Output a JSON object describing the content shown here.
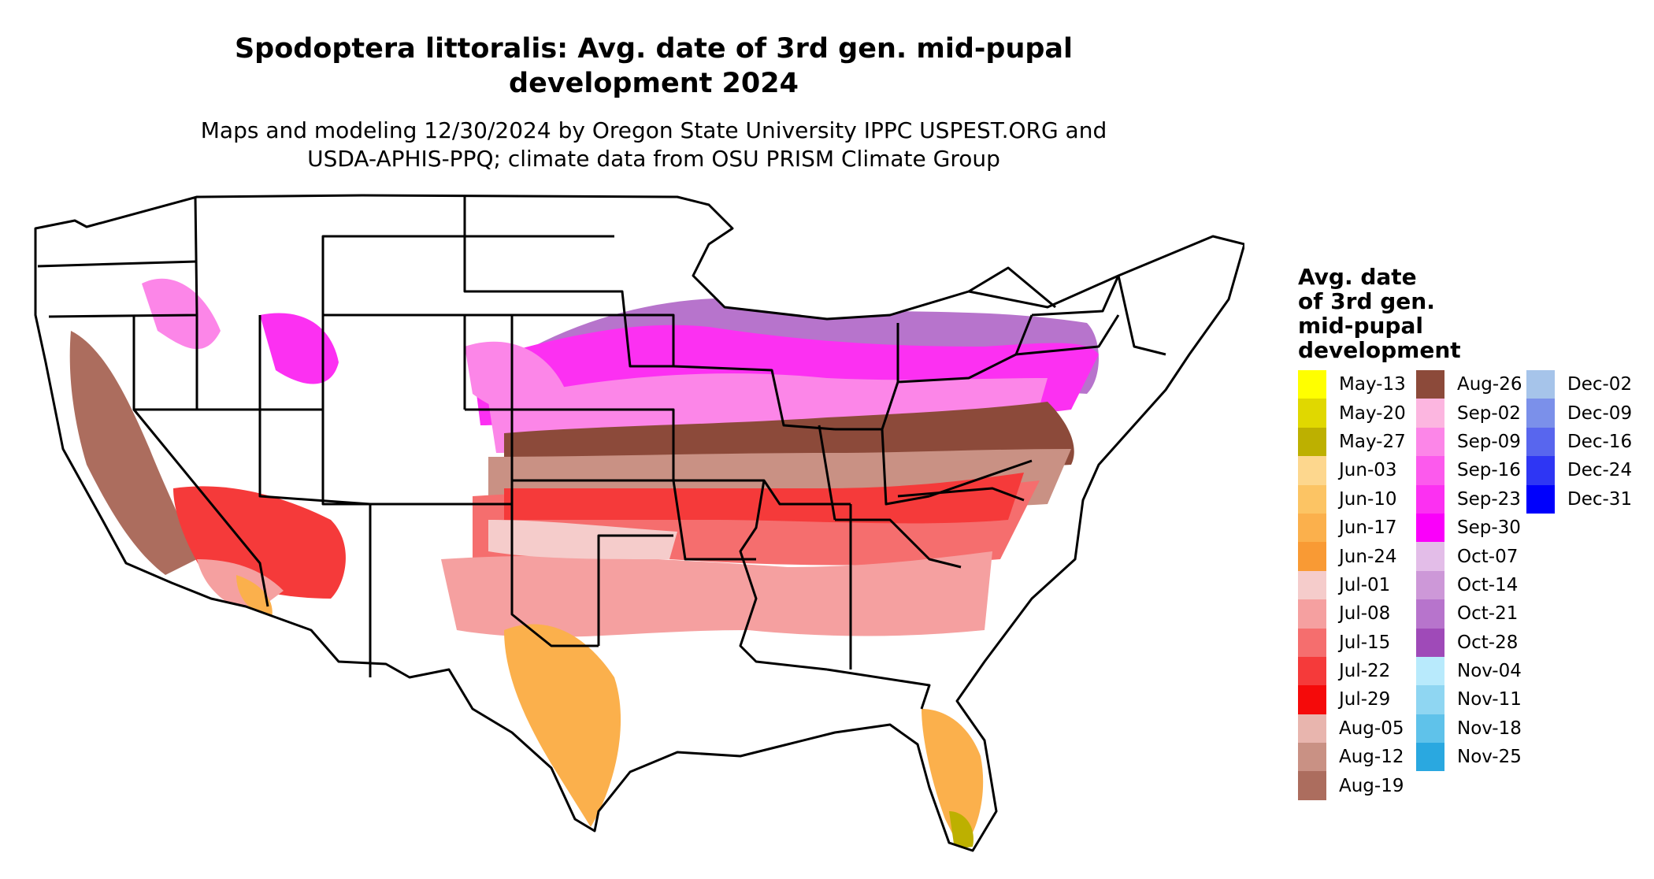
{
  "title": "Spodoptera littoralis: Avg. date of 3rd gen. mid-pupal development 2024",
  "title_line1": "Spodoptera littoralis: Avg. date of 3rd gen. mid-pupal",
  "title_line2": "development 2024",
  "subtitle_line1": "Maps and modeling 12/30/2024 by Oregon State University IPPC USPEST.ORG and",
  "subtitle_line2": "USDA-APHIS-PPQ; climate data from OSU PRISM Climate Group",
  "legend": {
    "title_lines": [
      "Avg. date",
      "of 3rd gen.",
      "mid-pupal",
      "development"
    ],
    "items": [
      {
        "label": "May-13",
        "color": "#ffff00"
      },
      {
        "label": "May-20",
        "color": "#e0d800"
      },
      {
        "label": "May-27",
        "color": "#bdb000"
      },
      {
        "label": "Jun-03",
        "color": "#fdd78e"
      },
      {
        "label": "Jun-10",
        "color": "#fcc464"
      },
      {
        "label": "Jun-17",
        "color": "#fbb04c"
      },
      {
        "label": "Jun-24",
        "color": "#f99a34"
      },
      {
        "label": "Jul-01",
        "color": "#f5cccb"
      },
      {
        "label": "Jul-08",
        "color": "#f5a0a0"
      },
      {
        "label": "Jul-15",
        "color": "#f56e6e"
      },
      {
        "label": "Jul-22",
        "color": "#f53a3a"
      },
      {
        "label": "Jul-29",
        "color": "#f50a0a"
      },
      {
        "label": "Aug-05",
        "color": "#e8b5ae"
      },
      {
        "label": "Aug-12",
        "color": "#c99184"
      },
      {
        "label": "Aug-19",
        "color": "#ac6d5e"
      },
      {
        "label": "Aug-26",
        "color": "#8c4a3a"
      },
      {
        "label": "Sep-02",
        "color": "#fcb6e0"
      },
      {
        "label": "Sep-09",
        "color": "#fc86e8"
      },
      {
        "label": "Sep-16",
        "color": "#fc5aed"
      },
      {
        "label": "Sep-23",
        "color": "#fc30f2"
      },
      {
        "label": "Sep-30",
        "color": "#fa00fa"
      },
      {
        "label": "Oct-07",
        "color": "#e3bde8"
      },
      {
        "label": "Oct-14",
        "color": "#cd98d8"
      },
      {
        "label": "Oct-21",
        "color": "#b774cc"
      },
      {
        "label": "Oct-28",
        "color": "#9f4ab8"
      },
      {
        "label": "Nov-04",
        "color": "#b8eafc"
      },
      {
        "label": "Nov-11",
        "color": "#8fd6f2"
      },
      {
        "label": "Nov-18",
        "color": "#5fc2ea"
      },
      {
        "label": "Nov-25",
        "color": "#2aa8e0"
      },
      {
        "label": "Dec-02",
        "color": "#a6c4ea"
      },
      {
        "label": "Dec-09",
        "color": "#7b90ea"
      },
      {
        "label": "Dec-16",
        "color": "#5866ee"
      },
      {
        "label": "Dec-24",
        "color": "#2e36f4"
      },
      {
        "label": "Dec-31",
        "color": "#0000fc"
      }
    ]
  }
}
